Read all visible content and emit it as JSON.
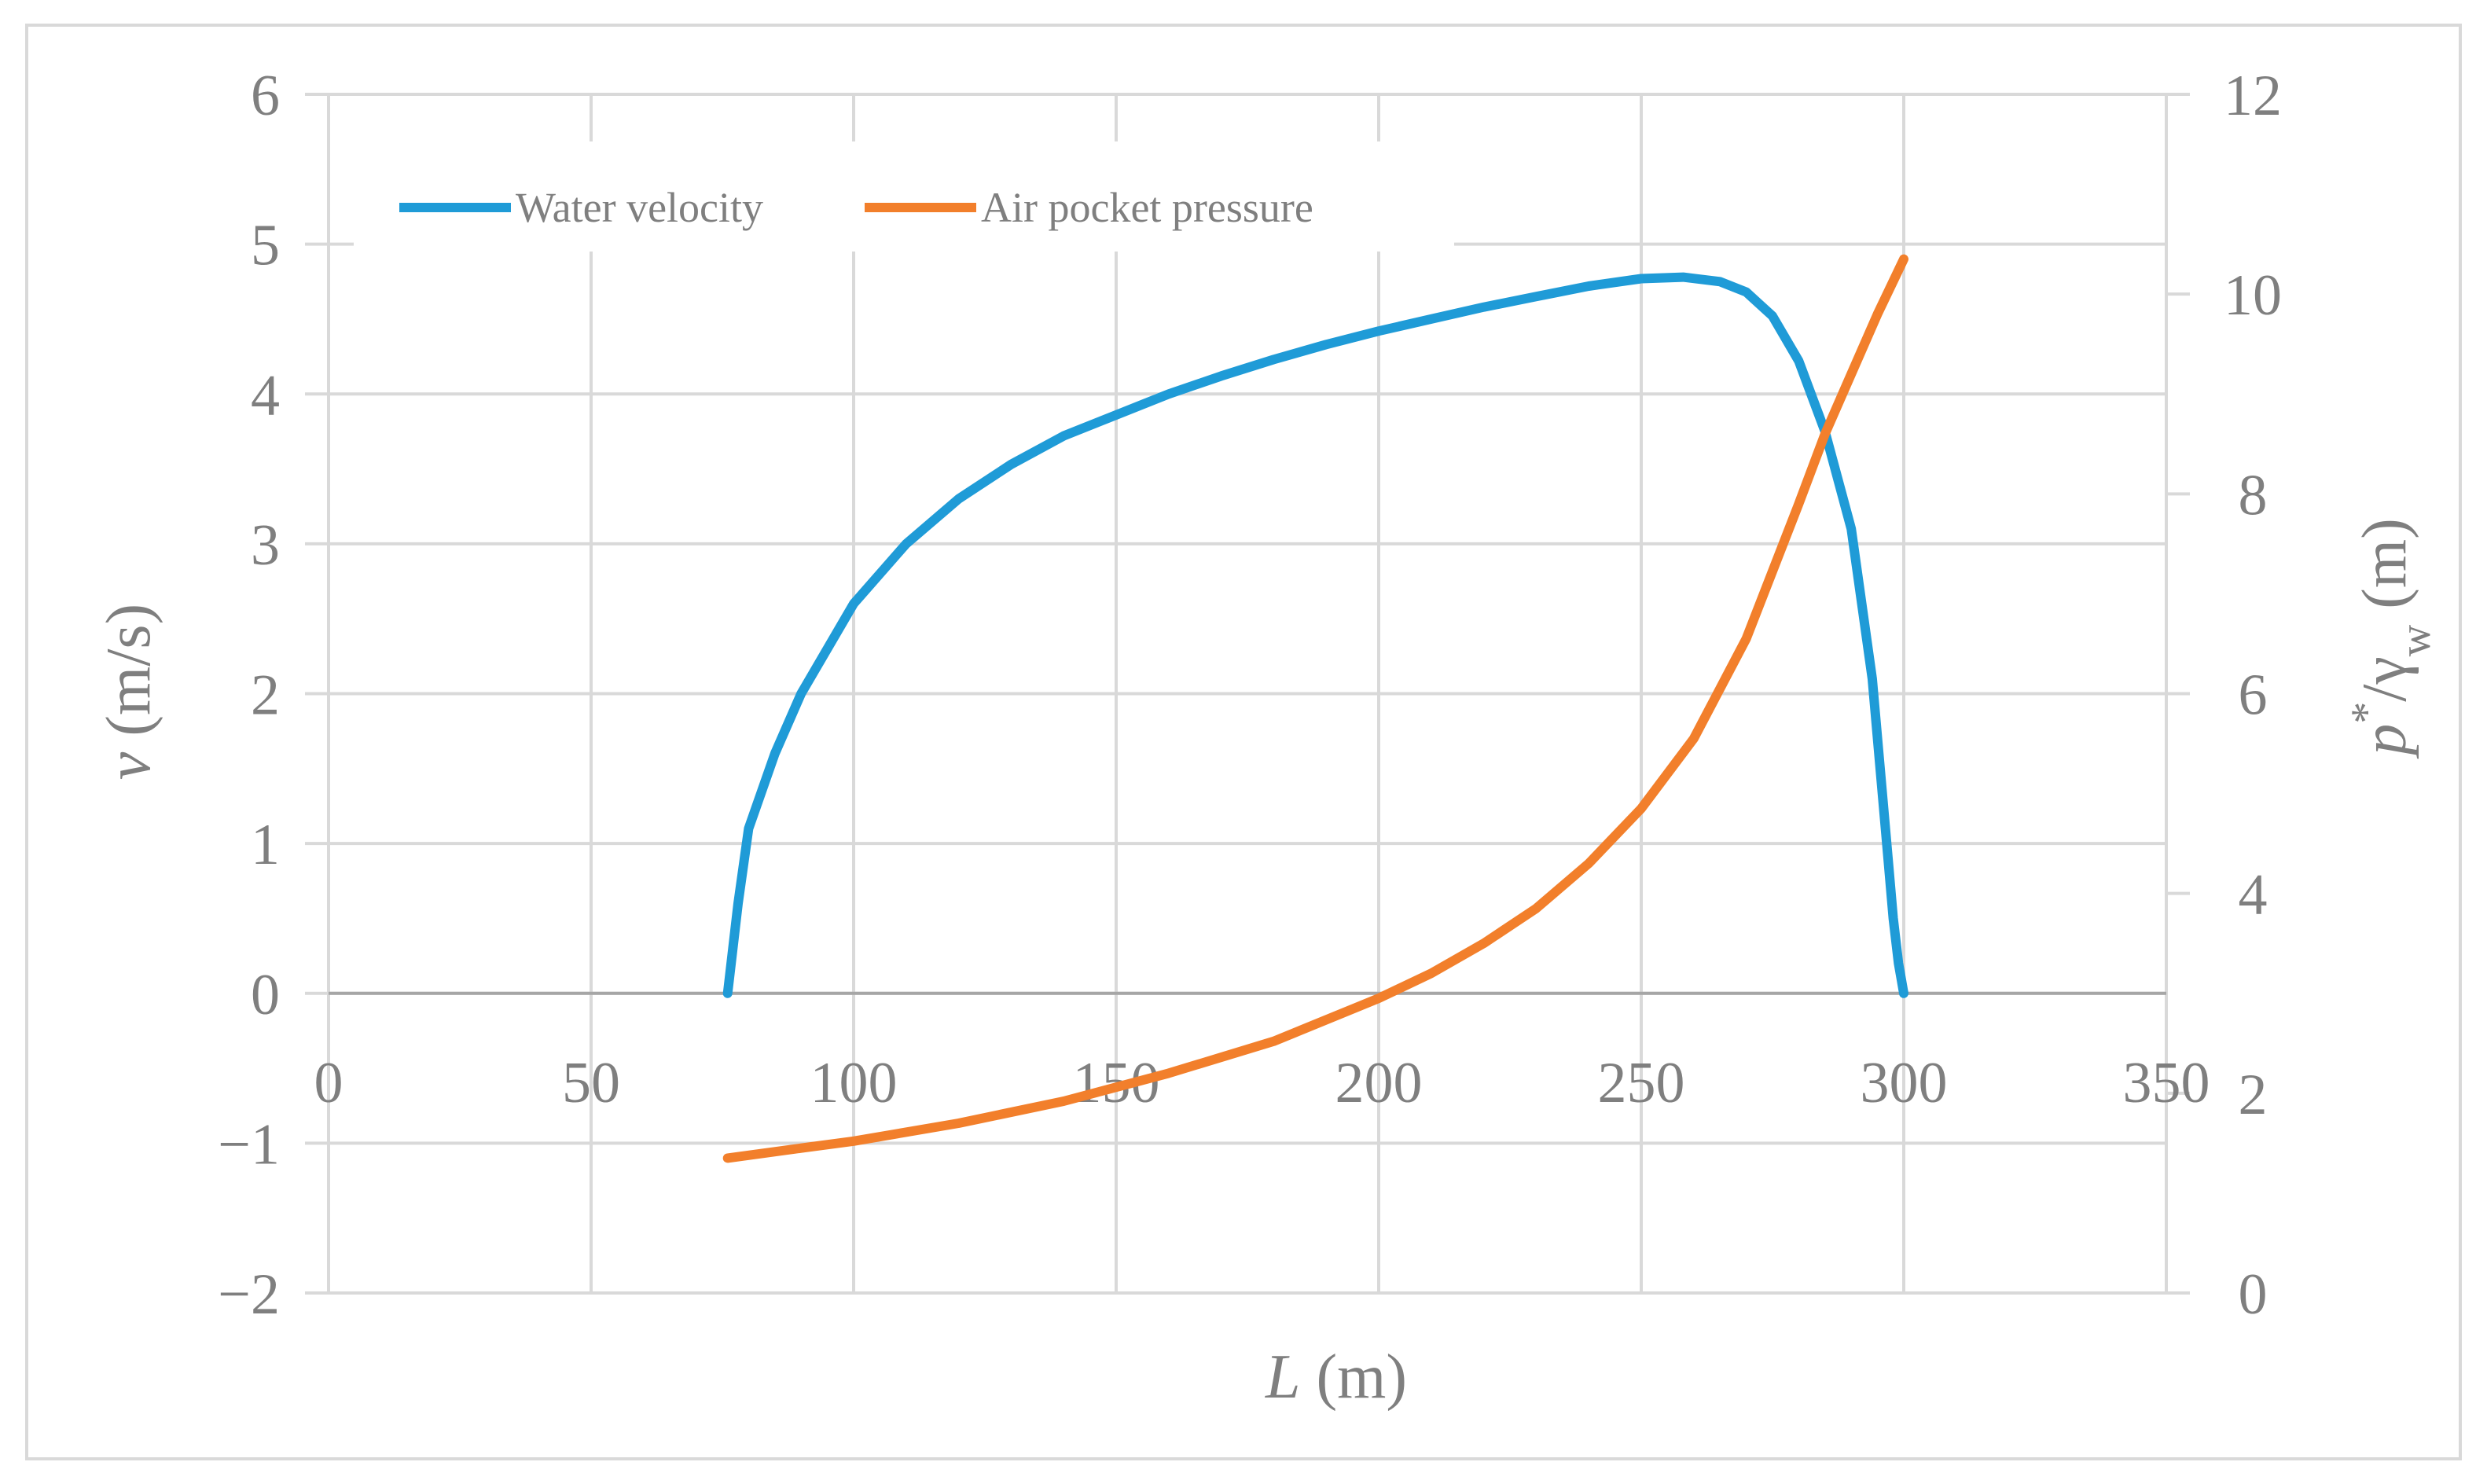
{
  "chart_data": {
    "type": "line",
    "x_label": {
      "italic": "L",
      "unit": " (m)"
    },
    "y_label_left": {
      "italic": "v",
      "unit": " (m/s)"
    },
    "y_label_right": {
      "p": "p",
      "star": "*",
      "slash": "/γ",
      "w": "w",
      "unit": " (m)"
    },
    "xlim": [
      0,
      350
    ],
    "ylim_left": [
      -2,
      6
    ],
    "ylim_right": [
      0,
      12
    ],
    "x_ticks": [
      0,
      50,
      100,
      150,
      200,
      250,
      300,
      350
    ],
    "x_tick_labels": [
      "0",
      "50",
      "100",
      "150",
      "200",
      "250",
      "300",
      "350"
    ],
    "y_left_ticks": [
      -2,
      -1,
      0,
      1,
      2,
      3,
      4,
      5,
      6
    ],
    "y_left_tick_labels": [
      "−2",
      "−1",
      "0",
      "1",
      "2",
      "3",
      "4",
      "5",
      "6"
    ],
    "y_right_ticks": [
      0,
      2,
      4,
      6,
      8,
      10,
      12
    ],
    "y_right_tick_labels": [
      "0",
      "2",
      "4",
      "6",
      "8",
      "10",
      "12"
    ],
    "grid": true,
    "legend_position": "top-left",
    "series": [
      {
        "name": "Water velocity",
        "axis": "left",
        "color": "#1f9bd7",
        "x": [
          76,
          78,
          80,
          85,
          90,
          100,
          110,
          120,
          130,
          140,
          150,
          160,
          170,
          180,
          190,
          200,
          210,
          220,
          230,
          240,
          250,
          258,
          265,
          270,
          275,
          280,
          285,
          290,
          294,
          296,
          297,
          298,
          299,
          300
        ],
        "y": [
          0,
          0.6,
          1.1,
          1.6,
          2.0,
          2.6,
          3.0,
          3.3,
          3.53,
          3.72,
          3.86,
          4.0,
          4.12,
          4.23,
          4.33,
          4.42,
          4.5,
          4.58,
          4.65,
          4.72,
          4.77,
          4.78,
          4.75,
          4.68,
          4.52,
          4.22,
          3.75,
          3.1,
          2.1,
          1.3,
          0.9,
          0.5,
          0.2,
          0
        ]
      },
      {
        "name": "Air pocket pressure",
        "axis": "right",
        "color": "#f27f2b",
        "x": [
          76,
          90,
          100,
          120,
          140,
          160,
          180,
          200,
          210,
          220,
          230,
          240,
          250,
          260,
          270,
          280,
          285,
          290,
          295,
          300
        ],
        "y": [
          1.35,
          1.45,
          1.52,
          1.7,
          1.92,
          2.2,
          2.52,
          2.95,
          3.2,
          3.5,
          3.85,
          4.3,
          4.85,
          5.55,
          6.55,
          7.9,
          8.6,
          9.2,
          9.8,
          10.35
        ]
      }
    ]
  }
}
